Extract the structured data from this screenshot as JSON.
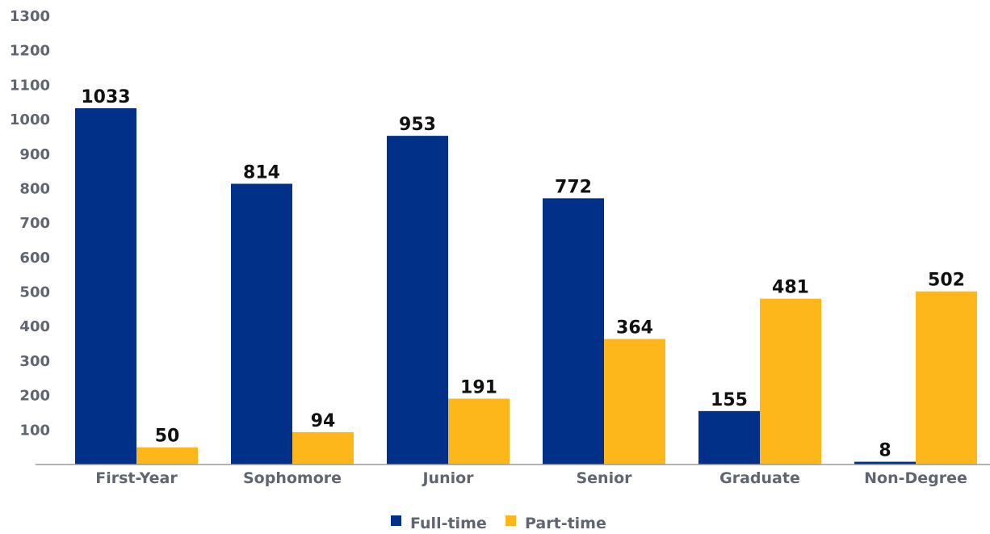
{
  "chart_data": {
    "type": "bar",
    "title": "",
    "xlabel": "",
    "ylabel": "",
    "categories": [
      "First-Year",
      "Sophomore",
      "Junior",
      "Senior",
      "Graduate",
      "Non-Degree"
    ],
    "series": [
      {
        "name": "Full-time",
        "color": "#003087",
        "values": [
          1033,
          814,
          953,
          772,
          155,
          8
        ]
      },
      {
        "name": "Part-time",
        "color": "#fdb71a",
        "values": [
          50,
          94,
          191,
          364,
          481,
          502
        ]
      }
    ],
    "ylim": [
      0,
      1300
    ],
    "yticks": [
      100,
      200,
      300,
      400,
      500,
      600,
      700,
      800,
      900,
      1000,
      1100,
      1200,
      1300
    ],
    "grid": false,
    "legend_position": "bottom-center",
    "data_labels": true
  }
}
